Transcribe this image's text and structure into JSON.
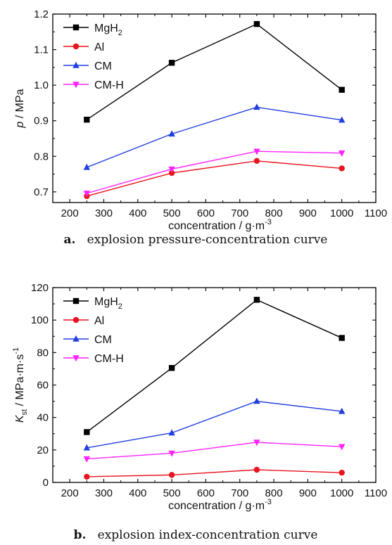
{
  "chart_data": [
    {
      "type": "line",
      "caption_letter": "a.",
      "caption": "explosion pressure-concentration curve",
      "ylabel_main": "p",
      "ylabel_rest": " / MPa",
      "xlabel": "concentration / g·m",
      "xlabel_sup": "-3",
      "xlim": [
        150,
        1100
      ],
      "ylim": [
        0.67,
        1.2
      ],
      "xticks": [
        200,
        300,
        400,
        500,
        600,
        700,
        800,
        900,
        1000,
        1100
      ],
      "yticks": [
        0.7,
        0.8,
        0.9,
        1.0,
        1.1,
        1.2
      ],
      "ytick_labels": [
        "0.7",
        "0.8",
        "0.9",
        "1.0",
        "1.1",
        "1.2"
      ],
      "x": [
        250,
        500,
        750,
        1000
      ],
      "legend_position": "top-left",
      "grid": false,
      "series": [
        {
          "name": "MgH",
          "sub": "2",
          "marker": "square",
          "color": "#000000",
          "values": [
            0.903,
            1.063,
            1.172,
            0.987
          ]
        },
        {
          "name": "Al",
          "sub": "",
          "marker": "circle",
          "color": "#e8141e",
          "values": [
            0.688,
            0.753,
            0.787,
            0.766
          ]
        },
        {
          "name": "CM",
          "sub": "",
          "marker": "triangle-up",
          "color": "#1f3fe0",
          "values": [
            0.769,
            0.863,
            0.938,
            0.902
          ]
        },
        {
          "name": "CM-H",
          "sub": "",
          "marker": "triangle-down",
          "color": "#ff22ff",
          "values": [
            0.696,
            0.764,
            0.814,
            0.809
          ]
        }
      ]
    },
    {
      "type": "line",
      "caption_letter": "b.",
      "caption": "explosion index-concentration curve",
      "ylabel_main": "K",
      "ylabel_sub": "st",
      "ylabel_rest": " / MPa·m·s",
      "ylabel_sup": "-1",
      "xlabel": "concentration / g·m",
      "xlabel_sup": "-3",
      "xlim": [
        150,
        1100
      ],
      "ylim": [
        0,
        120
      ],
      "xticks": [
        200,
        300,
        400,
        500,
        600,
        700,
        800,
        900,
        1000,
        1100
      ],
      "yticks": [
        0,
        20,
        40,
        60,
        80,
        100,
        120
      ],
      "ytick_labels": [
        "0",
        "20",
        "40",
        "60",
        "80",
        "100",
        "120"
      ],
      "x": [
        250,
        500,
        750,
        1000
      ],
      "legend_position": "top-left",
      "grid": false,
      "series": [
        {
          "name": "MgH",
          "sub": "2",
          "marker": "square",
          "color": "#000000",
          "values": [
            31,
            70.5,
            112.5,
            89
          ]
        },
        {
          "name": "Al",
          "sub": "",
          "marker": "circle",
          "color": "#e8141e",
          "values": [
            3.5,
            4.6,
            7.8,
            6
          ]
        },
        {
          "name": "CM",
          "sub": "",
          "marker": "triangle-up",
          "color": "#1f3fe0",
          "values": [
            21.3,
            30.5,
            50,
            43.8
          ]
        },
        {
          "name": "CM-H",
          "sub": "",
          "marker": "triangle-down",
          "color": "#ff22ff",
          "values": [
            14.5,
            18,
            24.7,
            22
          ]
        }
      ]
    }
  ]
}
